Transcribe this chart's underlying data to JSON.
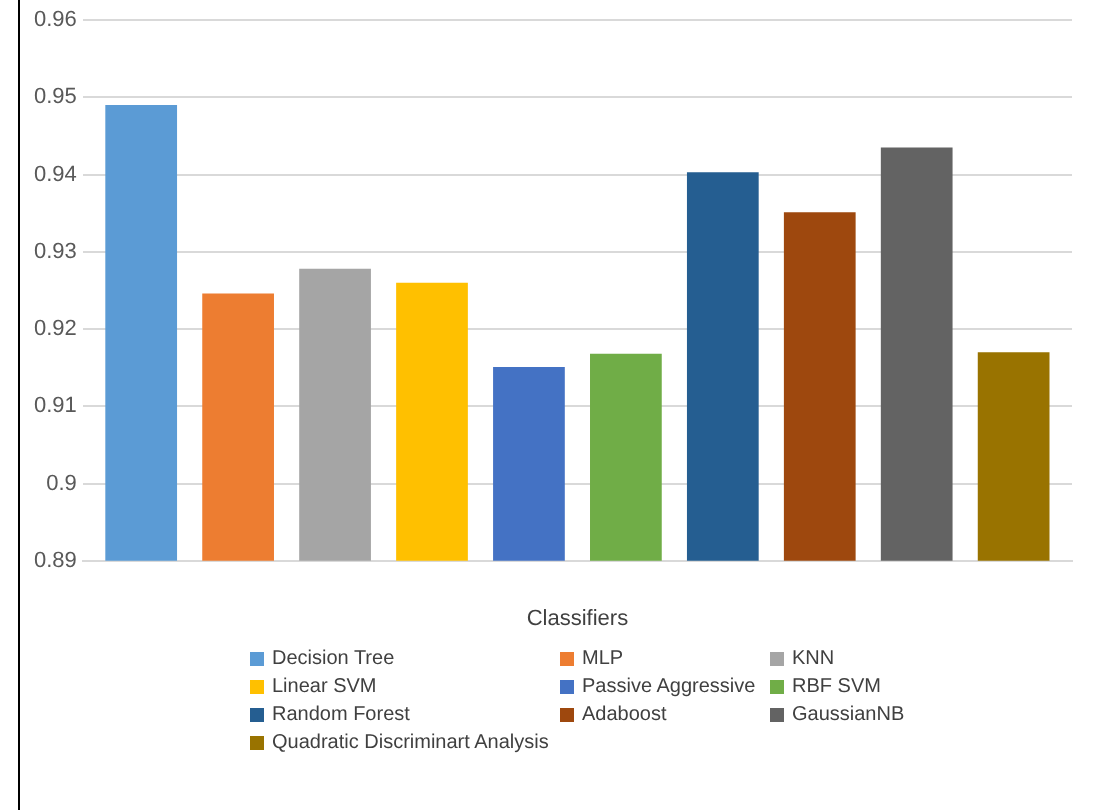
{
  "chart_data": {
    "type": "bar",
    "xlabel": "Classifiers",
    "categories": [
      null
    ],
    "series": [
      {
        "name": "Decision Tree",
        "color": "#5b9bd5",
        "values": [
          0.949
        ]
      },
      {
        "name": "MLP",
        "color": "#ed7d31",
        "values": [
          0.9246
        ]
      },
      {
        "name": "KNN",
        "color": "#a5a5a5",
        "values": [
          0.9278
        ]
      },
      {
        "name": "Linear SVM",
        "color": "#ffc000",
        "values": [
          0.926
        ]
      },
      {
        "name": "Passive Aggressive",
        "color": "#4472c4",
        "values": [
          0.9151
        ]
      },
      {
        "name": "RBF SVM",
        "color": "#70ad47",
        "values": [
          0.9168
        ]
      },
      {
        "name": "Random Forest",
        "color": "#255e91",
        "values": [
          0.9403
        ]
      },
      {
        "name": "Adaboost",
        "color": "#9e480e",
        "values": [
          0.9351
        ]
      },
      {
        "name": "GaussianNB",
        "color": "#636363",
        "values": [
          0.9435
        ]
      },
      {
        "name": "Quadratic Discriminart Analysis",
        "color": "#997300",
        "values": [
          0.917
        ]
      }
    ],
    "ylim": [
      0.89,
      0.96
    ],
    "yticks": [
      0.89,
      {
        "value": 0.9,
        "label": "0.9"
      },
      0.91,
      0.92,
      0.93,
      0.94,
      0.95,
      0.96
    ],
    "grid": "y",
    "legend": "bottom"
  }
}
